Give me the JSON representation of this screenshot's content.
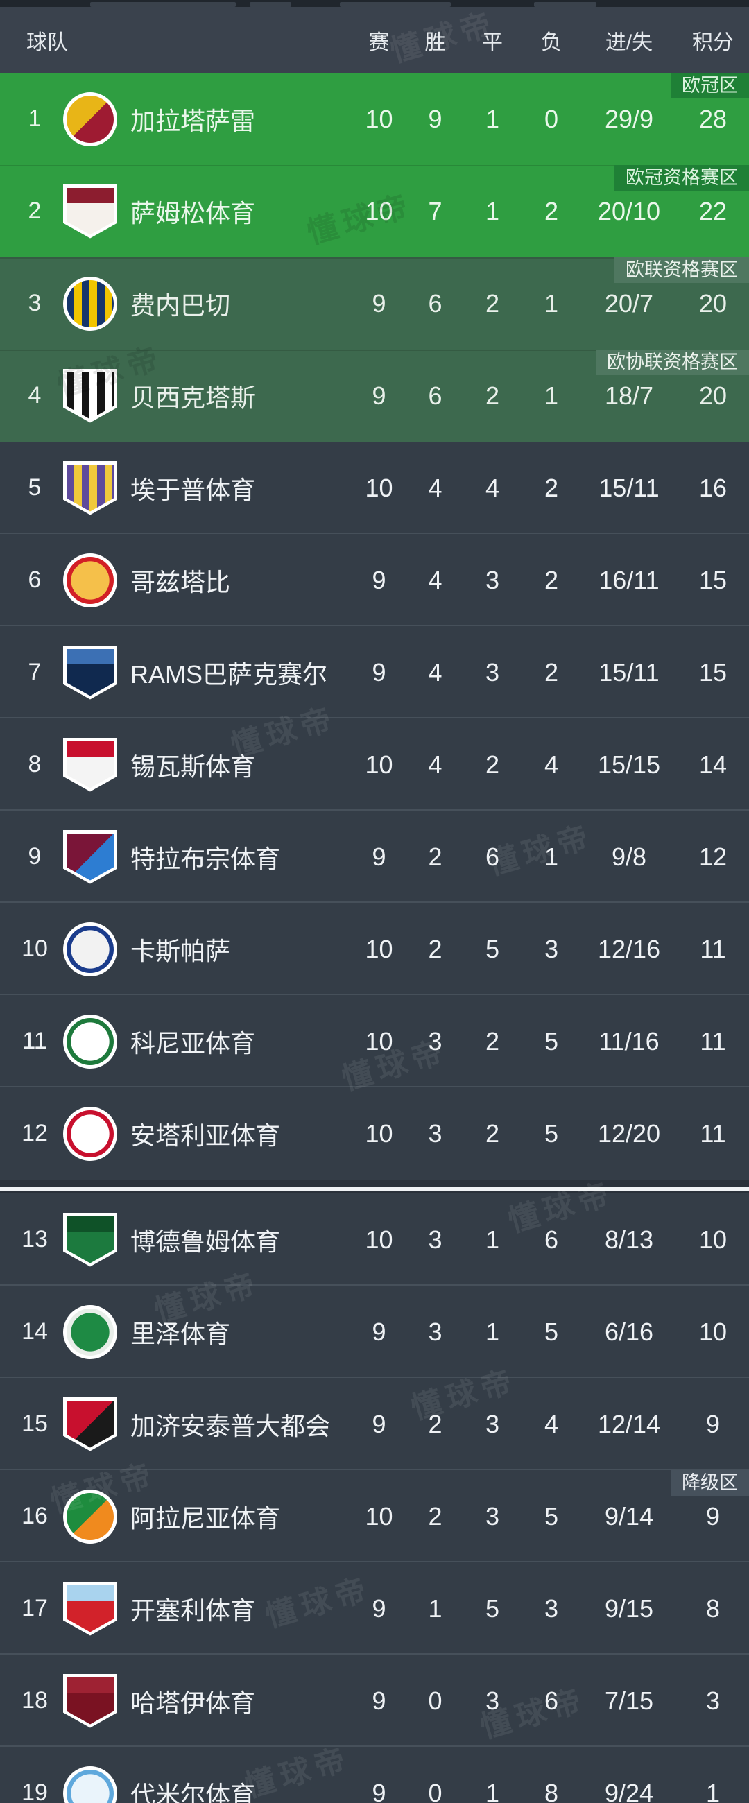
{
  "page": {
    "watermark_text": "懂球帝"
  },
  "colors": {
    "c-topbar": "#20262D",
    "c-header": "#3A424D",
    "c-green": "#2F9E41",
    "c-sage": "#3D694E",
    "c-dark": "#343D47",
    "c-dark-line": "#46505A",
    "c-label-green-bg": "#1F8036",
    "c-label-sage-bg": "#4F7760",
    "c-label-gray-bg": "#46515C",
    "c-divider-dark": "#2A313A",
    "c-divider-light": "#EFF2F4"
  },
  "table": {
    "header": {
      "team": "球队",
      "played": "赛",
      "won": "胜",
      "draw": "平",
      "lost": "负",
      "goals": "进/失",
      "points": "积分"
    },
    "zone_labels": {
      "champions": "欧冠区",
      "champions_qual": "欧冠资格赛区",
      "europa_qual": "欧联资格赛区",
      "conference_qual": "欧协联资格赛区",
      "relegation": "降级区"
    },
    "rows": [
      {
        "rank": "1",
        "team": "加拉塔萨雷",
        "played": "10",
        "won": "9",
        "draw": "1",
        "lost": "0",
        "goals": "29/9",
        "points": "28",
        "zone": "欧冠区",
        "tier": "cl",
        "zone_style": "green",
        "logo": {
          "shape": "circle",
          "pattern": "diag",
          "c1": "#E8B517",
          "c2": "#9E1B32"
        }
      },
      {
        "rank": "2",
        "team": "萨姆松体育",
        "played": "10",
        "won": "7",
        "draw": "1",
        "lost": "2",
        "goals": "20/10",
        "points": "22",
        "zone": "欧冠资格赛区",
        "tier": "cl",
        "zone_style": "green",
        "logo": {
          "shape": "shield",
          "pattern": "band",
          "c1": "#F5F1EC",
          "c2": "#8C1D2F"
        }
      },
      {
        "rank": "3",
        "team": "费内巴切",
        "played": "9",
        "won": "6",
        "draw": "2",
        "lost": "1",
        "goals": "20/7",
        "points": "20",
        "zone": "欧联资格赛区",
        "tier": "sage",
        "zone_style": "sage",
        "logo": {
          "shape": "circle",
          "pattern": "stripe",
          "c1": "#16356B",
          "c2": "#F2C500"
        }
      },
      {
        "rank": "4",
        "team": "贝西克塔斯",
        "played": "9",
        "won": "6",
        "draw": "2",
        "lost": "1",
        "goals": "18/7",
        "points": "20",
        "zone": "欧协联资格赛区",
        "tier": "sage",
        "zone_style": "sage",
        "logo": {
          "shape": "shield",
          "pattern": "stripe",
          "c1": "#151515",
          "c2": "#FFFFFF"
        }
      },
      {
        "rank": "5",
        "team": "埃于普体育",
        "played": "10",
        "won": "4",
        "draw": "4",
        "lost": "2",
        "goals": "15/11",
        "points": "16",
        "zone": "",
        "tier": "dark",
        "zone_style": "",
        "logo": {
          "shape": "shield",
          "pattern": "stripe",
          "c1": "#5E4A9C",
          "c2": "#F0C93C"
        }
      },
      {
        "rank": "6",
        "team": "哥兹塔比",
        "played": "9",
        "won": "4",
        "draw": "3",
        "lost": "2",
        "goals": "16/11",
        "points": "15",
        "zone": "",
        "tier": "dark",
        "zone_style": "",
        "logo": {
          "shape": "circle",
          "pattern": "ring",
          "c1": "#D21F26",
          "c2": "#F5C04A"
        }
      },
      {
        "rank": "7",
        "team": "RAMS巴萨克赛尔",
        "played": "9",
        "won": "4",
        "draw": "3",
        "lost": "2",
        "goals": "15/11",
        "points": "15",
        "zone": "",
        "tier": "dark",
        "zone_style": "",
        "logo": {
          "shape": "shield",
          "pattern": "band",
          "c1": "#10294F",
          "c2": "#3C70B4"
        }
      },
      {
        "rank": "8",
        "team": "锡瓦斯体育",
        "played": "10",
        "won": "4",
        "draw": "2",
        "lost": "4",
        "goals": "15/15",
        "points": "14",
        "zone": "",
        "tier": "dark",
        "zone_style": "",
        "logo": {
          "shape": "shield",
          "pattern": "band",
          "c1": "#F4F4F4",
          "c2": "#C8102E"
        }
      },
      {
        "rank": "9",
        "team": "特拉布宗体育",
        "played": "9",
        "won": "2",
        "draw": "6",
        "lost": "1",
        "goals": "9/8",
        "points": "12",
        "zone": "",
        "tier": "dark",
        "zone_style": "",
        "logo": {
          "shape": "shield",
          "pattern": "diag",
          "c1": "#7A1538",
          "c2": "#2D7DD2"
        }
      },
      {
        "rank": "10",
        "team": "卡斯帕萨",
        "played": "10",
        "won": "2",
        "draw": "5",
        "lost": "3",
        "goals": "12/16",
        "points": "11",
        "zone": "",
        "tier": "dark",
        "zone_style": "",
        "logo": {
          "shape": "circle",
          "pattern": "ring",
          "c1": "#1B3C8C",
          "c2": "#F2F2F2"
        }
      },
      {
        "rank": "11",
        "team": "科尼亚体育",
        "played": "10",
        "won": "3",
        "draw": "2",
        "lost": "5",
        "goals": "11/16",
        "points": "11",
        "zone": "",
        "tier": "dark",
        "zone_style": "",
        "logo": {
          "shape": "circle",
          "pattern": "ring",
          "c1": "#1E7A3C",
          "c2": "#FFFFFF"
        }
      },
      {
        "rank": "12",
        "team": "安塔利亚体育",
        "played": "10",
        "won": "3",
        "draw": "2",
        "lost": "5",
        "goals": "12/20",
        "points": "11",
        "zone": "",
        "tier": "dark",
        "zone_style": "",
        "logo": {
          "shape": "circle",
          "pattern": "ring",
          "c1": "#C8102E",
          "c2": "#FFFFFF"
        }
      },
      {
        "rank": "13",
        "team": "博德鲁姆体育",
        "played": "10",
        "won": "3",
        "draw": "1",
        "lost": "6",
        "goals": "8/13",
        "points": "10",
        "zone": "",
        "tier": "dark",
        "zone_style": "",
        "logo": {
          "shape": "shield",
          "pattern": "band",
          "c1": "#1C7A3E",
          "c2": "#0F5228"
        }
      },
      {
        "rank": "14",
        "team": "里泽体育",
        "played": "9",
        "won": "3",
        "draw": "1",
        "lost": "5",
        "goals": "6/16",
        "points": "10",
        "zone": "",
        "tier": "dark",
        "zone_style": "",
        "logo": {
          "shape": "circle",
          "pattern": "ring",
          "c1": "#E8EEE9",
          "c2": "#1E8A44"
        }
      },
      {
        "rank": "15",
        "team": "加济安泰普大都会",
        "played": "9",
        "won": "2",
        "draw": "3",
        "lost": "4",
        "goals": "12/14",
        "points": "9",
        "zone": "",
        "tier": "dark",
        "zone_style": "",
        "logo": {
          "shape": "shield",
          "pattern": "diag",
          "c1": "#C8102E",
          "c2": "#1A1A1A"
        }
      },
      {
        "rank": "16",
        "team": "阿拉尼亚体育",
        "played": "10",
        "won": "2",
        "draw": "3",
        "lost": "5",
        "goals": "9/14",
        "points": "9",
        "zone": "降级区",
        "tier": "dark",
        "zone_style": "gray",
        "logo": {
          "shape": "circle",
          "pattern": "diag",
          "c1": "#1E8C3E",
          "c2": "#F08A1E"
        }
      },
      {
        "rank": "17",
        "team": "开塞利体育",
        "played": "9",
        "won": "1",
        "draw": "5",
        "lost": "3",
        "goals": "9/15",
        "points": "8",
        "zone": "",
        "tier": "dark",
        "zone_style": "",
        "logo": {
          "shape": "shield",
          "pattern": "band",
          "c1": "#D2222A",
          "c2": "#A9D3EE"
        }
      },
      {
        "rank": "18",
        "team": "哈塔伊体育",
        "played": "9",
        "won": "0",
        "draw": "3",
        "lost": "6",
        "goals": "7/15",
        "points": "3",
        "zone": "",
        "tier": "dark",
        "zone_style": "",
        "logo": {
          "shape": "shield",
          "pattern": "band",
          "c1": "#7A1222",
          "c2": "#9E2233"
        }
      },
      {
        "rank": "19",
        "team": "代米尔体育",
        "played": "9",
        "won": "0",
        "draw": "1",
        "lost": "8",
        "goals": "9/24",
        "points": "1",
        "zone": "",
        "tier": "dark",
        "zone_style": "",
        "logo": {
          "shape": "circle",
          "pattern": "ring",
          "c1": "#5FA8DC",
          "c2": "#EAF4FB"
        }
      }
    ]
  }
}
